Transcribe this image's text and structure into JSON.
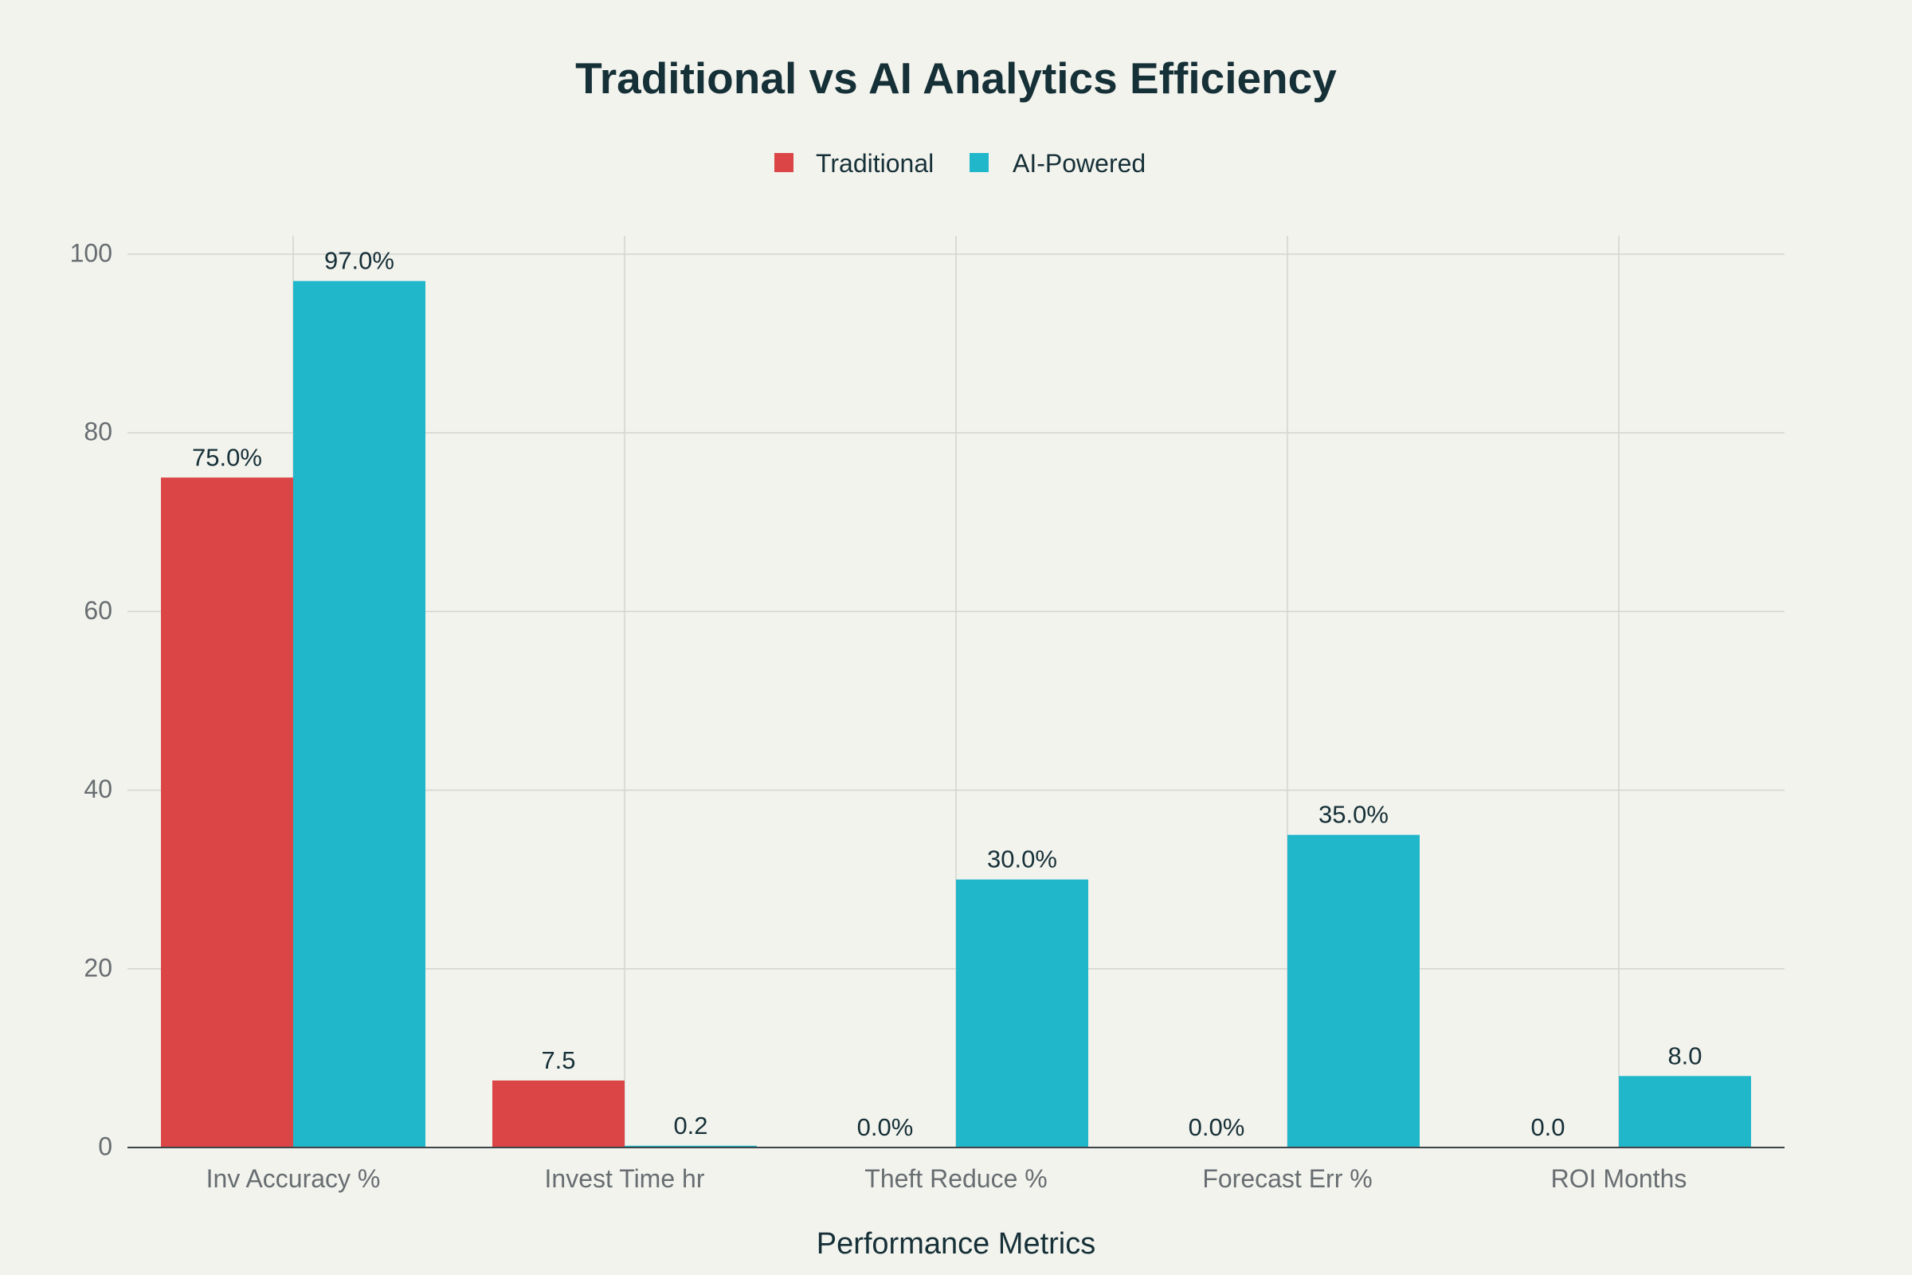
{
  "chart_data": {
    "type": "bar",
    "title": "Traditional vs AI Analytics Efficiency",
    "xlabel": "Performance Metrics",
    "ylabel": "",
    "ylim": [
      0,
      100
    ],
    "yticks": [
      "0",
      "20",
      "40",
      "60",
      "80",
      "100"
    ],
    "grid": true,
    "legend_position": "top-center",
    "categories": [
      "Inv Accuracy %",
      "Invest Time hr",
      "Theft Reduce %",
      "Forecast Err %",
      "ROI Months"
    ],
    "series": [
      {
        "name": "Traditional",
        "color": "#db4545",
        "values": [
          75,
          7.5,
          0,
          0,
          0
        ],
        "labels": [
          "75.0%",
          "7.5",
          "0.0%",
          "0.0%",
          "0.0"
        ]
      },
      {
        "name": "AI-Powered",
        "color": "#21b7cb",
        "values": [
          97,
          0.2,
          30,
          35,
          8
        ],
        "labels": [
          "97.0%",
          "0.2",
          "30.0%",
          "35.0%",
          "8.0"
        ]
      }
    ]
  }
}
